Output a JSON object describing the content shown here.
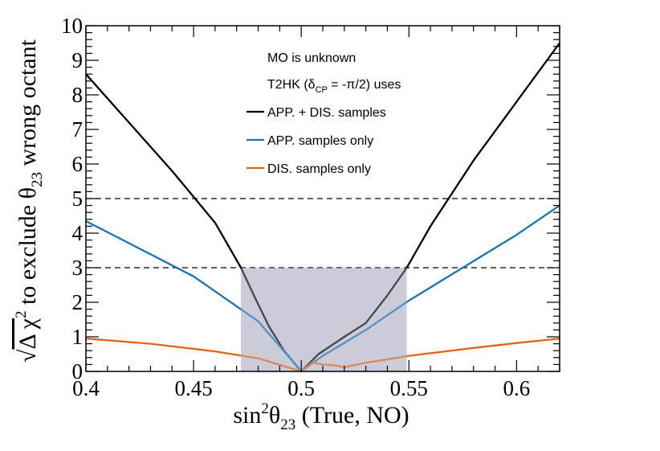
{
  "chart_data": {
    "type": "line",
    "xlabel": {
      "main": "sin",
      "sup": "2",
      "theta": "θ",
      "sub": "23",
      "rest": " (True, NO)"
    },
    "ylabel": {
      "radical": "√",
      "delta_chi": "Δ χ",
      "sup": "2",
      "text": " to exclude θ",
      "sub": "23",
      "tail": " wrong octant"
    },
    "xlim": [
      0.4,
      0.62
    ],
    "ylim": [
      0,
      10
    ],
    "x_ticks": [
      {
        "value": 0.4,
        "label": "0.4"
      },
      {
        "value": 0.45,
        "label": "0.45"
      },
      {
        "value": 0.5,
        "label": "0.5"
      },
      {
        "value": 0.55,
        "label": "0.55"
      },
      {
        "value": 0.6,
        "label": "0.6"
      }
    ],
    "y_ticks": [
      {
        "value": 0,
        "label": "0"
      },
      {
        "value": 1,
        "label": "1"
      },
      {
        "value": 2,
        "label": "2"
      },
      {
        "value": 3,
        "label": "3"
      },
      {
        "value": 4,
        "label": "4"
      },
      {
        "value": 5,
        "label": "5"
      },
      {
        "value": 6,
        "label": "6"
      },
      {
        "value": 7,
        "label": "7"
      },
      {
        "value": 8,
        "label": "8"
      },
      {
        "value": 9,
        "label": "9"
      },
      {
        "value": 10,
        "label": "10"
      }
    ],
    "reference_lines": [
      3,
      5
    ],
    "shaded_region": {
      "x": [
        0.472,
        0.549
      ],
      "y": [
        0,
        3
      ],
      "color": "#cccbdb"
    },
    "legend": {
      "header1": "MO is unknown",
      "header2_pre": "T2HK (δ",
      "header2_sub": "CP",
      "header2_post": " = -π/2) uses"
    },
    "series": [
      {
        "name": "APP. + DIS. samples",
        "color": "#000000",
        "points": [
          [
            0.4,
            8.6
          ],
          [
            0.42,
            7.2
          ],
          [
            0.44,
            5.8
          ],
          [
            0.46,
            4.3
          ],
          [
            0.472,
            3.0
          ],
          [
            0.478,
            2.2
          ],
          [
            0.485,
            1.3
          ],
          [
            0.492,
            0.6
          ],
          [
            0.5,
            0.0
          ],
          [
            0.508,
            0.5
          ],
          [
            0.52,
            1.0
          ],
          [
            0.53,
            1.4
          ],
          [
            0.54,
            2.2
          ],
          [
            0.549,
            3.0
          ],
          [
            0.56,
            4.2
          ],
          [
            0.58,
            6.1
          ],
          [
            0.6,
            7.8
          ],
          [
            0.62,
            9.5
          ]
        ]
      },
      {
        "name": "APP. samples only",
        "color": "#1a74b0",
        "points": [
          [
            0.4,
            4.35
          ],
          [
            0.45,
            2.75
          ],
          [
            0.48,
            1.45
          ],
          [
            0.5,
            0.0
          ],
          [
            0.51,
            0.45
          ],
          [
            0.53,
            1.2
          ],
          [
            0.55,
            2.05
          ],
          [
            0.6,
            3.95
          ],
          [
            0.62,
            4.8
          ]
        ]
      },
      {
        "name": "DIS. samples only",
        "color": "#e0631a",
        "points": [
          [
            0.4,
            0.95
          ],
          [
            0.43,
            0.8
          ],
          [
            0.46,
            0.58
          ],
          [
            0.48,
            0.38
          ],
          [
            0.5,
            0.0
          ],
          [
            0.505,
            0.25
          ],
          [
            0.51,
            0.2
          ],
          [
            0.515,
            0.18
          ],
          [
            0.52,
            0.12
          ],
          [
            0.53,
            0.25
          ],
          [
            0.55,
            0.45
          ],
          [
            0.58,
            0.68
          ],
          [
            0.6,
            0.82
          ],
          [
            0.62,
            0.95
          ]
        ]
      }
    ]
  }
}
